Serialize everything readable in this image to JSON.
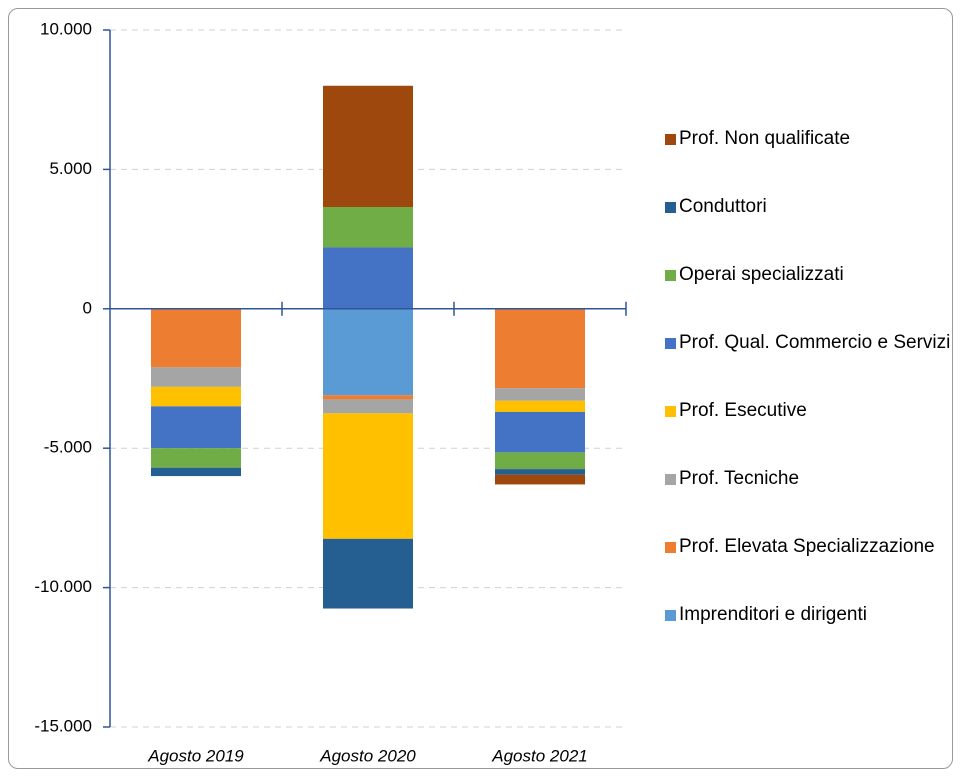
{
  "chart_data": {
    "type": "stacked-bar",
    "categories": [
      "Agosto 2019",
      "Agosto 2020",
      "Agosto 2021"
    ],
    "series": [
      {
        "name": "Imprenditori e dirigenti",
        "color": "#5b9bd5",
        "values": [
          0,
          -3100,
          0
        ]
      },
      {
        "name": "Prof. Elevata Specializzazione",
        "color": "#ed7d31",
        "values": [
          -2100,
          -150,
          -2850
        ]
      },
      {
        "name": "Prof. Tecniche",
        "color": "#a5a5a5",
        "values": [
          -700,
          -500,
          -450
        ]
      },
      {
        "name": "Prof. Esecutive",
        "color": "#ffc000",
        "values": [
          -700,
          -4500,
          -400
        ]
      },
      {
        "name": "Prof. Qual. Commercio e Servizi",
        "color": "#4472c4",
        "values": [
          -1500,
          2200,
          -1450
        ]
      },
      {
        "name": "Operai specializzati",
        "color": "#70ad47",
        "values": [
          -700,
          1450,
          -600
        ]
      },
      {
        "name": "Conduttori",
        "color": "#255e91",
        "values": [
          -300,
          -2500,
          -200
        ]
      },
      {
        "name": "Prof. Non qualificate",
        "color": "#9e480e",
        "values": [
          0,
          4350,
          -350
        ]
      }
    ],
    "ylim": [
      -15000,
      10000
    ],
    "yticks": [
      {
        "value": -15000,
        "label": "-15.000"
      },
      {
        "value": -10000,
        "label": "-10.000"
      },
      {
        "value": -5000,
        "label": "-5.000"
      },
      0,
      {
        "value": 5000,
        "label": "5.000"
      },
      {
        "value": 10000,
        "label": "10.000"
      }
    ],
    "grid": true
  }
}
